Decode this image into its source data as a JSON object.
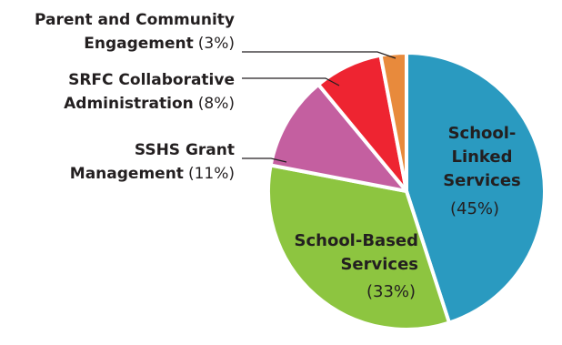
{
  "chart_data": {
    "type": "pie",
    "slices": [
      {
        "lines": [
          "School-",
          "Linked",
          "Services"
        ],
        "pct_label": "(45%)",
        "value": 45,
        "color": "#2a9ac0"
      },
      {
        "lines": [
          "School-Based",
          "Services"
        ],
        "pct_label": "(33%)",
        "value": 33,
        "color": "#8dc540"
      },
      {
        "lines": [
          "SSHS Grant",
          "Management"
        ],
        "pct_label": "(11%)",
        "value": 11,
        "color": "#c45fa0"
      },
      {
        "lines": [
          "SRFC Collaborative",
          "Administration"
        ],
        "pct_label": "(8%)",
        "value": 8,
        "color": "#ee2431"
      },
      {
        "lines": [
          "Parent and Community",
          "Engagement"
        ],
        "pct_label": "(3%)",
        "value": 3,
        "color": "#e88a3c"
      }
    ]
  }
}
